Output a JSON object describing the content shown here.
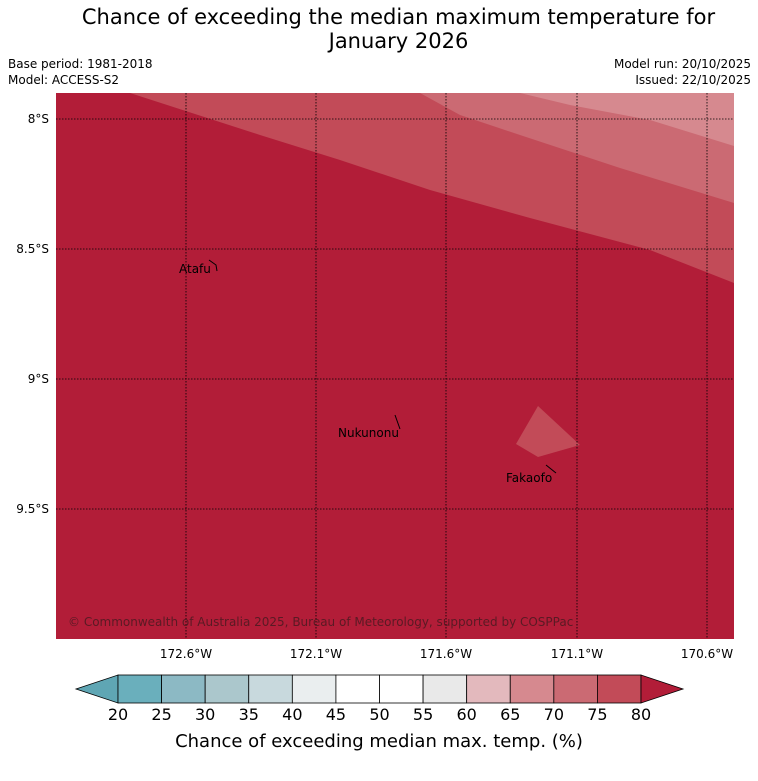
{
  "header": {
    "title_line1": "Chance of exceeding the median maximum temperature for",
    "title_line2": "January 2026",
    "base_period": "Base period: 1981-2018",
    "model": "Model: ACCESS-S2",
    "model_run": "Model run: 20/10/2025",
    "issued": "Issued: 22/10/2025"
  },
  "map": {
    "lat_labels": [
      "8°S",
      "8.5°S",
      "9°S",
      "9.5°S"
    ],
    "lon_labels": [
      "172.6°W",
      "172.1°W",
      "171.6°W",
      "171.1°W",
      "170.6°W"
    ],
    "places": [
      "Atafu",
      "Nukunonu",
      "Fakaofo"
    ],
    "copyright": "© Commonwealth of Australia 2025, Bureau of Meteorology, supported by COSPPac",
    "colors": {
      "p80plus": "#b21d38",
      "p75_80": "#c24b58",
      "p70_75": "#cb6a73",
      "p65_70": "#d6898f"
    }
  },
  "colorbar": {
    "ticks": [
      "20",
      "25",
      "30",
      "35",
      "40",
      "45",
      "50",
      "55",
      "60",
      "65",
      "70",
      "75",
      "80"
    ],
    "colors": [
      "#5fa6b4",
      "#6aafbc",
      "#8cb9c4",
      "#abc7cc",
      "#c8d9dd",
      "#eaeeef",
      "#ffffff",
      "#ffffff",
      "#e9e9e9",
      "#e3b9bd",
      "#d6898f",
      "#cb6a73",
      "#c24b58",
      "#b21d38"
    ],
    "title": "Chance of exceeding median max. temp. (%)"
  }
}
